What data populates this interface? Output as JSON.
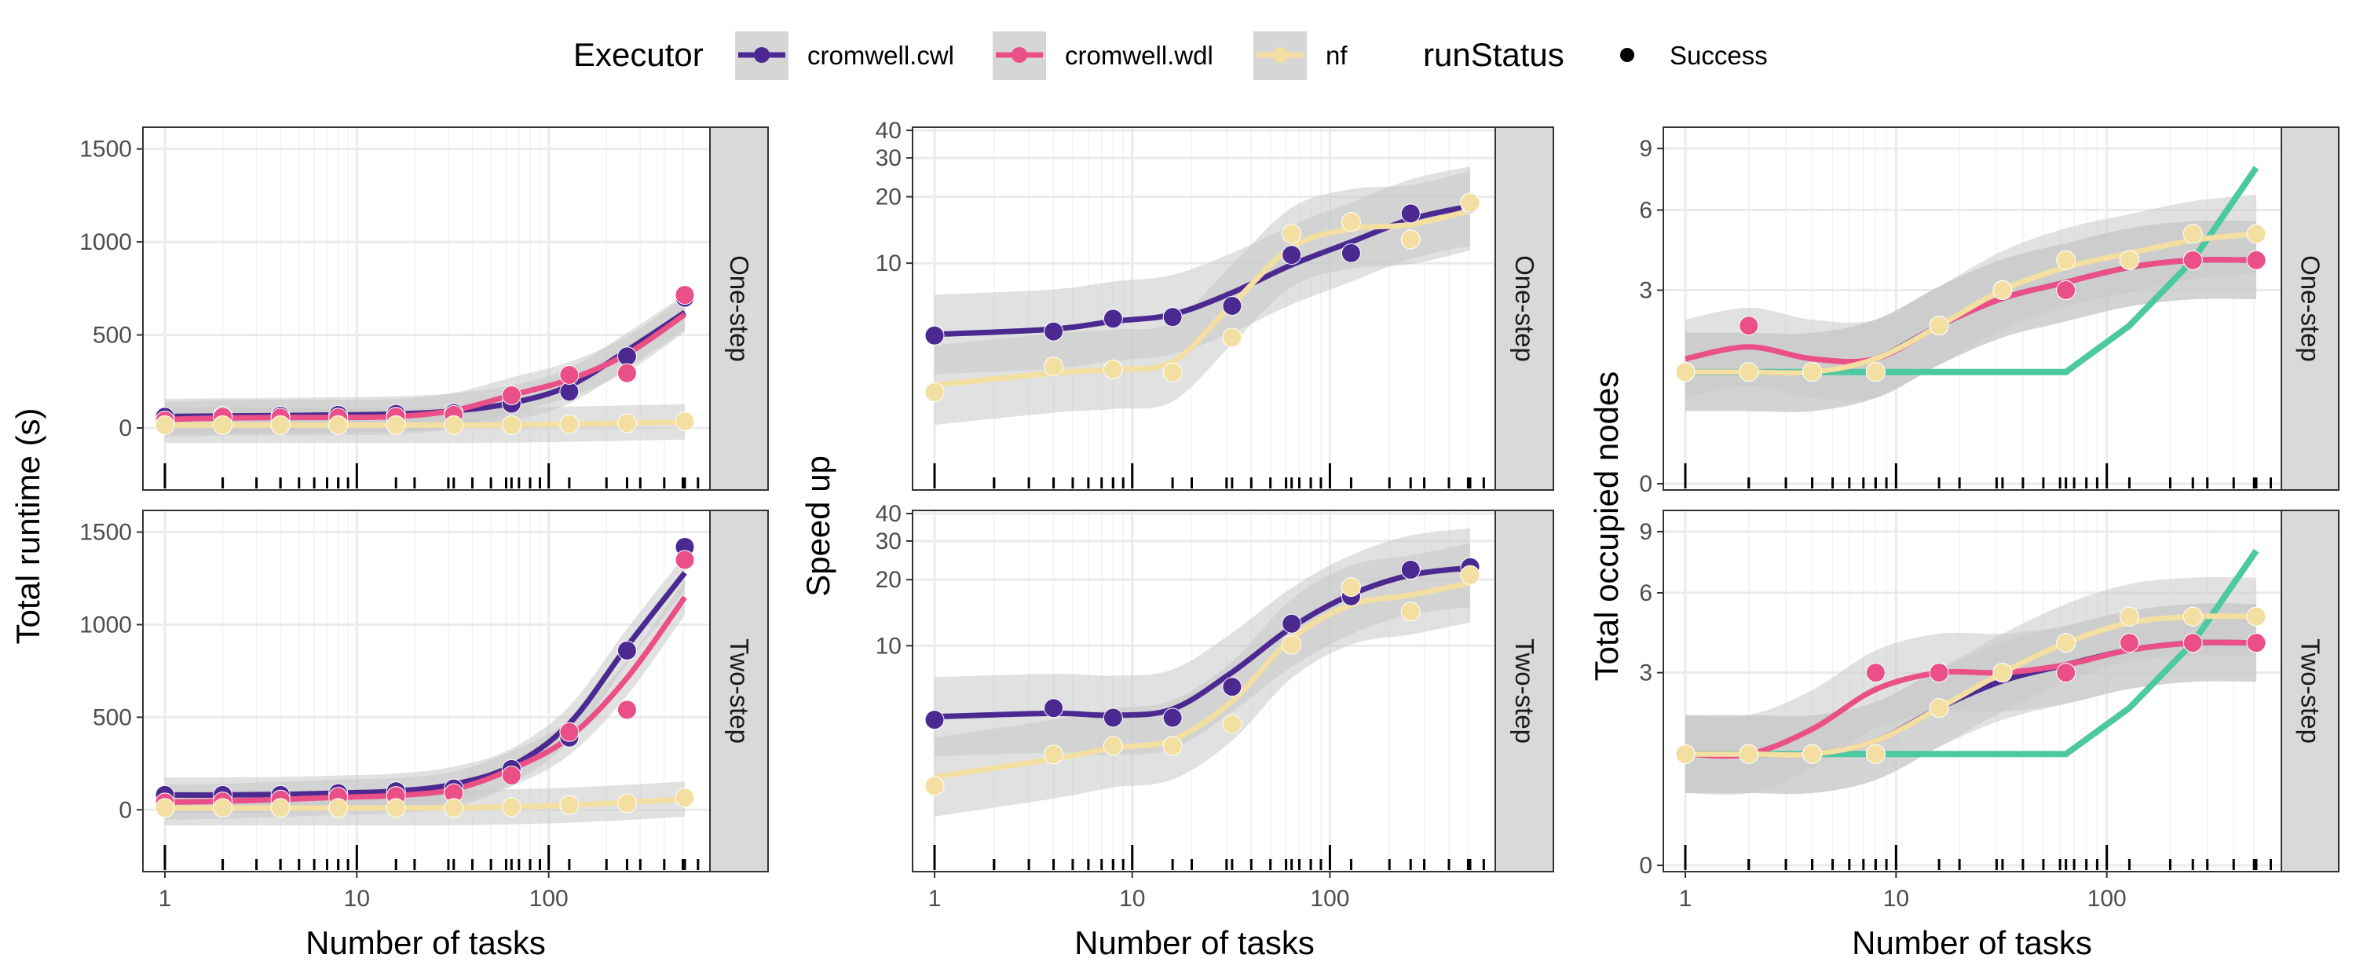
{
  "legend": {
    "executor_title": "Executor",
    "status_title": "runStatus",
    "entries": [
      {
        "key": "cwl",
        "label": "cromwell.cwl",
        "color": "#4b2991"
      },
      {
        "key": "wdl",
        "label": "cromwell.wdl",
        "color": "#ea4f88"
      },
      {
        "key": "nf",
        "label": "nf",
        "color": "#f3dfa2"
      }
    ],
    "status": [
      {
        "label": "Success",
        "shape": "filled-circle"
      }
    ]
  },
  "colors": {
    "cwl": "#4b2991",
    "wdl": "#ea4f88",
    "nf": "#f3dfa2",
    "nodes_ref": "#4dc9a0",
    "ribbon": "#c8c8c8",
    "strip": "#d9d9d9",
    "grid": "#ebebeb"
  },
  "strips": [
    "One-step",
    "Two-step"
  ],
  "chart_data": [
    {
      "type": "scatter",
      "panel_col": "runtime",
      "ylabel": "Total runtime (s)",
      "xlabel": "Number of tasks",
      "xscale": "log10",
      "xlim": [
        1,
        512
      ],
      "ylim": [
        -300,
        1600
      ],
      "x_ticks": [
        1,
        10,
        100
      ],
      "x_tick_labels": [
        "1",
        "10",
        "100"
      ],
      "y_ticks": [
        0,
        500,
        1000,
        1500
      ],
      "y_tick_labels": [
        "0",
        "500",
        "1000",
        "1500"
      ],
      "grid": true,
      "rows": [
        {
          "strip": "One-step",
          "series": [
            {
              "name": "cromwell.cwl",
              "x": [
                1,
                2,
                4,
                8,
                16,
                32,
                64,
                128,
                256,
                512
              ],
              "y": [
                60,
                65,
                65,
                70,
                75,
                80,
                130,
                195,
                385,
                700
              ]
            },
            {
              "name": "cromwell.wdl",
              "x": [
                1,
                2,
                4,
                8,
                16,
                32,
                64,
                128,
                256,
                512
              ],
              "y": [
                40,
                60,
                55,
                55,
                60,
                70,
                175,
                285,
                295,
                715
              ]
            },
            {
              "name": "nf",
              "x": [
                1,
                2,
                4,
                8,
                16,
                32,
                64,
                128,
                256,
                512
              ],
              "y": [
                15,
                15,
                15,
                15,
                15,
                15,
                15,
                20,
                25,
                35
              ]
            }
          ]
        },
        {
          "strip": "Two-step",
          "series": [
            {
              "name": "cromwell.cwl",
              "x": [
                1,
                2,
                4,
                8,
                16,
                32,
                64,
                128,
                256,
                512
              ],
              "y": [
                80,
                80,
                80,
                90,
                100,
                115,
                220,
                390,
                860,
                1420
              ]
            },
            {
              "name": "cromwell.wdl",
              "x": [
                1,
                2,
                4,
                8,
                16,
                32,
                64,
                128,
                256,
                512
              ],
              "y": [
                40,
                45,
                55,
                70,
                75,
                90,
                185,
                420,
                540,
                1350
              ]
            },
            {
              "name": "nf",
              "x": [
                1,
                2,
                4,
                8,
                16,
                32,
                64,
                128,
                256,
                512
              ],
              "y": [
                10,
                10,
                10,
                10,
                10,
                10,
                15,
                25,
                35,
                65
              ]
            }
          ]
        }
      ]
    },
    {
      "type": "scatter",
      "panel_col": "speedup",
      "ylabel": "Speed up",
      "xlabel": "Number of tasks",
      "xscale": "log10",
      "yscale": "log10",
      "xlim": [
        1,
        512
      ],
      "ylim": [
        1,
        40
      ],
      "x_ticks": [
        1,
        10,
        100
      ],
      "x_tick_labels": [
        "1",
        "10",
        "100"
      ],
      "y_ticks": [
        10,
        20,
        30,
        40
      ],
      "y_tick_labels": [
        "10",
        "20",
        "30",
        "40"
      ],
      "grid": true,
      "rows": [
        {
          "strip": "One-step",
          "series": [
            {
              "name": "cromwell.cwl",
              "x": [
                1,
                4,
                8,
                16,
                32,
                64,
                128,
                256,
                512
              ],
              "y": [
                4.7,
                4.9,
                5.6,
                5.7,
                6.4,
                10.9,
                11.1,
                16.8,
                18.6
              ]
            },
            {
              "name": "nf",
              "x": [
                1,
                4,
                8,
                16,
                32,
                64,
                128,
                256,
                512
              ],
              "y": [
                2.6,
                3.4,
                3.3,
                3.2,
                4.6,
                13.6,
                15.4,
                12.8,
                18.8
              ]
            }
          ]
        },
        {
          "strip": "Two-step",
          "series": [
            {
              "name": "cromwell.cwl",
              "x": [
                1,
                4,
                8,
                16,
                32,
                64,
                128,
                256,
                512
              ],
              "y": [
                4.6,
                5.2,
                4.7,
                4.7,
                6.5,
                12.6,
                16.8,
                22.2,
                22.8
              ]
            },
            {
              "name": "nf",
              "x": [
                1,
                4,
                8,
                16,
                32,
                64,
                128,
                256,
                512
              ],
              "y": [
                2.3,
                3.2,
                3.5,
                3.5,
                4.4,
                10.1,
                18.5,
                14.3,
                21.0
              ]
            }
          ]
        }
      ]
    },
    {
      "type": "scatter",
      "panel_col": "nodes",
      "ylabel": "Total occupied nodes",
      "xlabel": "Number of tasks",
      "xscale": "log10",
      "yscale": "sqrt",
      "xlim": [
        1,
        512
      ],
      "ylim": [
        0,
        10
      ],
      "x_ticks": [
        1,
        10,
        100
      ],
      "x_tick_labels": [
        "1",
        "10",
        "100"
      ],
      "y_ticks": [
        0,
        3,
        6,
        9
      ],
      "y_tick_labels": [
        "0",
        "3",
        "6",
        "9"
      ],
      "grid": true,
      "rows": [
        {
          "strip": "One-step",
          "reference_line": {
            "x": [
              1,
              2,
              4,
              8,
              16,
              32,
              64,
              128,
              256,
              512
            ],
            "y": [
              1,
              1,
              1,
              1,
              1,
              1,
              1,
              2,
              4,
              8
            ]
          },
          "series": [
            {
              "name": "cromwell.cwl",
              "x": [
                1,
                2,
                4,
                8,
                16,
                32,
                64,
                128,
                256,
                512
              ],
              "y": [
                1,
                1,
                1,
                1,
                2,
                3,
                3,
                4,
                4,
                4
              ]
            },
            {
              "name": "cromwell.wdl",
              "x": [
                1,
                2,
                4,
                8,
                16,
                32,
                64,
                128,
                256,
                512
              ],
              "y": [
                1,
                2,
                1,
                1,
                2,
                3,
                3,
                4,
                4,
                4
              ]
            },
            {
              "name": "nf",
              "x": [
                1,
                2,
                4,
                8,
                16,
                32,
                64,
                128,
                256,
                512
              ],
              "y": [
                1,
                1,
                1,
                1,
                2,
                3,
                4,
                4,
                5,
                5
              ]
            }
          ]
        },
        {
          "strip": "Two-step",
          "reference_line": {
            "x": [
              1,
              2,
              4,
              8,
              16,
              32,
              64,
              128,
              256,
              512
            ],
            "y": [
              1,
              1,
              1,
              1,
              1,
              1,
              1,
              2,
              4,
              8
            ]
          },
          "series": [
            {
              "name": "cromwell.cwl",
              "x": [
                1,
                2,
                4,
                8,
                16,
                32,
                64,
                128,
                256,
                512
              ],
              "y": [
                1,
                1,
                1,
                1,
                2,
                3,
                3,
                4,
                4,
                4
              ]
            },
            {
              "name": "cromwell.wdl",
              "x": [
                1,
                2,
                4,
                8,
                16,
                32,
                64,
                128,
                256,
                512
              ],
              "y": [
                1,
                1,
                1,
                3,
                3,
                3,
                3,
                4,
                4,
                4
              ]
            },
            {
              "name": "nf",
              "x": [
                1,
                2,
                4,
                8,
                16,
                32,
                64,
                128,
                256,
                512
              ],
              "y": [
                1,
                1,
                1,
                1,
                2,
                3,
                4,
                5,
                5,
                5
              ]
            }
          ]
        }
      ]
    }
  ]
}
